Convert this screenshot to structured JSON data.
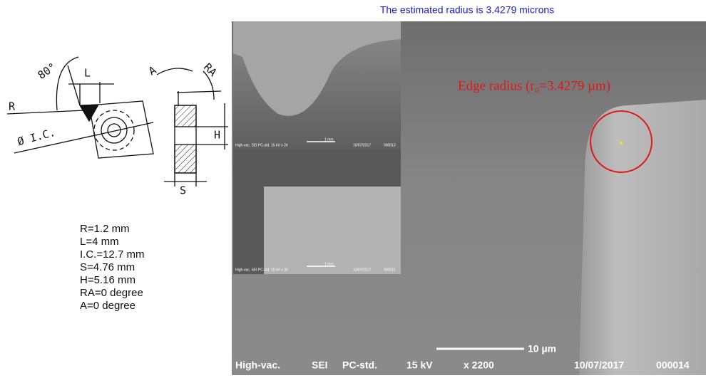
{
  "header": {
    "title": "The estimated radius is 3.4279 microns"
  },
  "drawing": {
    "labels": {
      "angle": "80°",
      "l": "L",
      "r": "R",
      "ic": "Ø I.C.",
      "a": "A",
      "ra": "RA",
      "h": "H",
      "s": "S"
    }
  },
  "specs": [
    "R=1.2 mm",
    "L=4 mm",
    "I.C.=12.7 mm",
    "S=4.76 mm",
    "H=5.16 mm",
    "RA=0 degree",
    "A=0 degree"
  ],
  "sem": {
    "annotation": "Edge radius (r₀=3.4279 µm)",
    "info": [
      "High-vac.",
      "SEI",
      "PC-std.",
      "15 kV",
      "x 2200"
    ],
    "scale": "10 µm",
    "date": "10/07/2017",
    "image_id": "000014"
  },
  "insets": [
    {
      "info": "High-vac.   SEI   PC-std.   15 kV   x 24",
      "scale": "1 mm",
      "date": "10/07/2017",
      "image_id": "000013"
    },
    {
      "info": "High-vac.   SEI   PC-std.   15 kV   x 30",
      "scale": "1 mm",
      "date": "10/07/2017",
      "image_id": "000011"
    }
  ]
}
